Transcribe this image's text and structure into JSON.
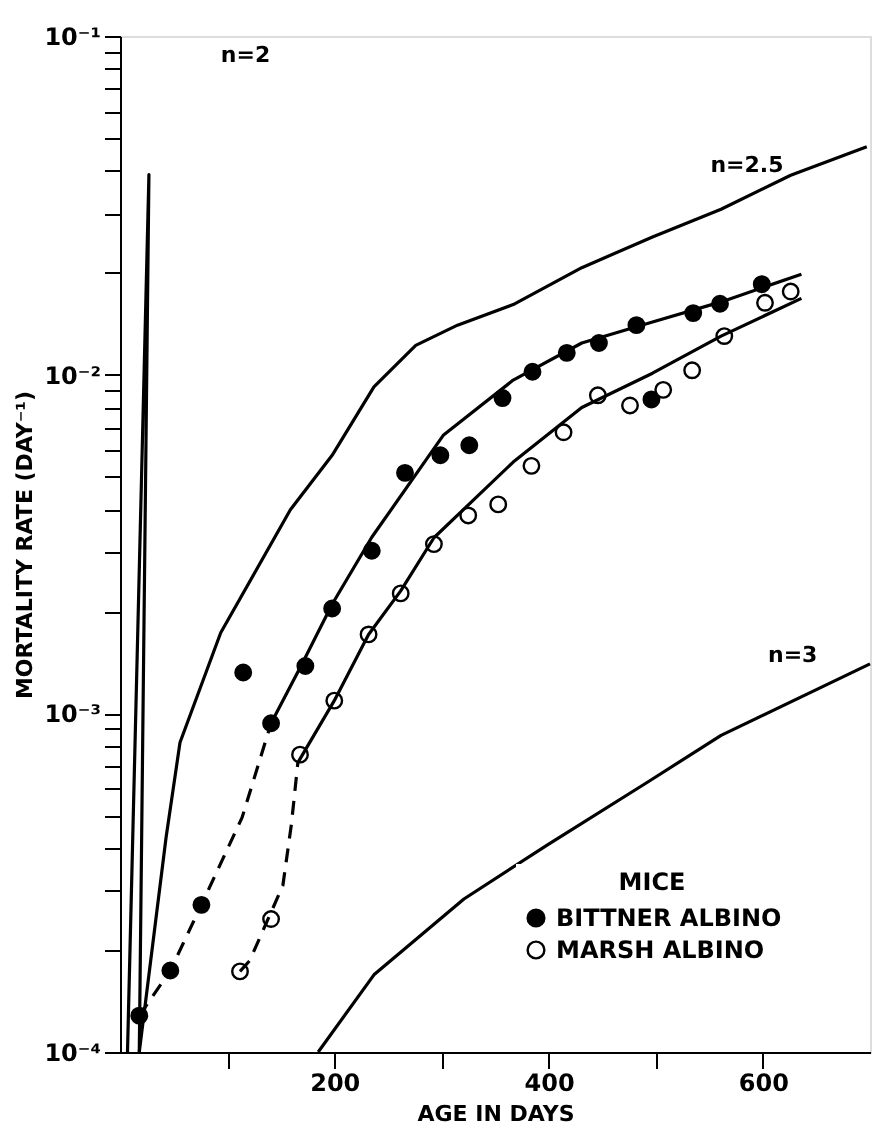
{
  "chart_data": {
    "type": "scatter",
    "xlabel": "AGE IN DAYS",
    "ylabel": "MORTALITY RATE (DAY⁻¹)",
    "legend_title": "MICE",
    "legend": "bottom right",
    "log": "y",
    "grid": false,
    "marker": "circle",
    "xlim": [
      0,
      700
    ],
    "xticks": [
      {
        "value": 100,
        "label": null
      },
      200,
      {
        "value": 300,
        "label": null
      },
      400,
      {
        "value": 500,
        "label": null
      },
      600
    ],
    "ylim": [
      0.0001,
      0.1
    ],
    "yticks": [
      {
        "value": 0.0001,
        "label": "10⁻⁴"
      },
      {
        "value": 0.0002,
        "label": null
      },
      {
        "value": 0.0003,
        "label": null
      },
      {
        "value": 0.0004,
        "label": null
      },
      {
        "value": 0.0005,
        "label": null
      },
      {
        "value": 0.0006,
        "label": null
      },
      {
        "value": 0.0007,
        "label": null
      },
      {
        "value": 0.0008,
        "label": null
      },
      {
        "value": 0.0009,
        "label": null
      },
      {
        "value": 0.001,
        "label": "10⁻³"
      },
      {
        "value": 0.002,
        "label": null
      },
      {
        "value": 0.003,
        "label": null
      },
      {
        "value": 0.004,
        "label": null
      },
      {
        "value": 0.005,
        "label": null
      },
      {
        "value": 0.006,
        "label": null
      },
      {
        "value": 0.007,
        "label": null
      },
      {
        "value": 0.008,
        "label": null
      },
      {
        "value": 0.009,
        "label": null
      },
      {
        "value": 0.01,
        "label": "10⁻²"
      },
      {
        "value": 0.02,
        "label": null
      },
      {
        "value": 0.03,
        "label": null
      },
      {
        "value": 0.04,
        "label": null
      },
      {
        "value": 0.05,
        "label": null
      },
      {
        "value": 0.06,
        "label": null
      },
      {
        "value": 0.07,
        "label": null
      },
      {
        "value": 0.08,
        "label": null
      },
      {
        "value": 0.09,
        "label": null
      },
      {
        "value": 0.1,
        "label": "10⁻¹"
      }
    ],
    "series": [
      {
        "name": "BITTNER ALBINO",
        "color": "#000000",
        "x": [
          18,
          47,
          76,
          115,
          141,
          173,
          198,
          235,
          266,
          299,
          326,
          357,
          385,
          417,
          447,
          482,
          496,
          535,
          560,
          599
        ],
        "values": [
          0.000128,
          0.000174,
          0.000272,
          0.00132,
          0.000935,
          0.00138,
          0.00204,
          0.00302,
          0.00513,
          0.00578,
          0.00619,
          0.00853,
          0.0102,
          0.0116,
          0.0124,
          0.014,
          0.00845,
          0.0152,
          0.0162,
          0.0185
        ]
      },
      {
        "name": "MARSH ALBINO",
        "color": "#ffffff",
        "x": [
          112,
          141,
          168,
          200,
          232,
          262,
          293,
          325,
          353,
          384,
          414,
          446,
          476,
          507,
          534,
          564,
          602,
          626
        ],
        "values": [
          0.000173,
          0.000247,
          0.000755,
          0.00109,
          0.00171,
          0.00226,
          0.00316,
          0.00384,
          0.00414,
          0.00538,
          0.00676,
          0.00869,
          0.00811,
          0.00902,
          0.0103,
          0.013,
          0.0163,
          0.0176
        ]
      },
      {
        "type": "line",
        "color": "#000000",
        "line_style": "dashed",
        "marker": "none",
        "x": [
          18,
          47,
          76,
          114,
          141
        ],
        "values": [
          0.000128,
          0.000174,
          0.000272,
          0.000493,
          0.000935
        ]
      },
      {
        "type": "line",
        "color": "#000000",
        "line_style": "solid",
        "marker": "none",
        "x": [
          141,
          170,
          198,
          235,
          302,
          367,
          431,
          497,
          561,
          636
        ],
        "values": [
          0.000935,
          0.0014,
          0.0021,
          0.00331,
          0.00664,
          0.00964,
          0.0124,
          0.0143,
          0.0164,
          0.0198
        ]
      },
      {
        "type": "line",
        "color": "#000000",
        "line_style": "dashed",
        "marker": "none",
        "x": [
          112,
          121,
          152,
          160,
          166
        ],
        "values": [
          0.000173,
          0.000186,
          0.00031,
          0.000471,
          0.000715
        ]
      },
      {
        "type": "line",
        "color": "#000000",
        "line_style": "solid",
        "marker": "none",
        "x": [
          166,
          200,
          232,
          262,
          293,
          367,
          431,
          497,
          561,
          636
        ],
        "values": [
          0.000715,
          0.00109,
          0.00171,
          0.0023,
          0.0033,
          0.00552,
          0.008,
          0.0101,
          0.013,
          0.0168
        ]
      },
      {
        "type": "line",
        "color": "#000000",
        "line_style": "solid",
        "marker": "none",
        "x": [
          7,
          27,
          18
        ],
        "values": [
          0.0001,
          0.039,
          0.0001
        ]
      },
      {
        "type": "line",
        "color": "#000000",
        "line_style": "solid",
        "marker": "none",
        "x": [
          18,
          43,
          56,
          94,
          159,
          198,
          237,
          276,
          315,
          367,
          431,
          497,
          561,
          626,
          697
        ],
        "values": [
          0.0001,
          0.00043,
          0.00082,
          0.00173,
          0.00399,
          0.00578,
          0.0092,
          0.0122,
          0.014,
          0.0161,
          0.0207,
          0.0255,
          0.0308,
          0.0388,
          0.0471
        ]
      },
      {
        "type": "line",
        "color": "#000000",
        "line_style": "solid",
        "marker": "none",
        "x": [
          185,
          237,
          321,
          399,
          493,
          561,
          700
        ],
        "values": [
          0.0001,
          0.000169,
          0.000283,
          0.000409,
          0.000628,
          0.000861,
          0.0014
        ]
      }
    ],
    "annotations": [
      "n=2",
      "n=2.5",
      "n=3"
    ]
  }
}
